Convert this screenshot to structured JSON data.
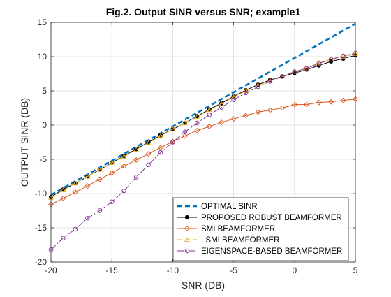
{
  "chart_data": {
    "type": "line",
    "title": "Fig.2. Output SINR versus SNR; example1",
    "xlabel": "SNR (DB)",
    "ylabel": "OUTPUT SINR (DB)",
    "xlim": [
      -20,
      5
    ],
    "ylim": [
      -20,
      15
    ],
    "xticks": [
      -20,
      -15,
      -10,
      -5,
      0,
      5
    ],
    "yticks": [
      -20,
      -15,
      -10,
      -5,
      0,
      5,
      10,
      15
    ],
    "grid": true,
    "legend_position": "bottom-right",
    "x": [
      -20,
      -19,
      -18,
      -17,
      -16,
      -15,
      -14,
      -13,
      -12,
      -11,
      -10,
      -9,
      -8,
      -7,
      -6,
      -5,
      -4,
      -3,
      -2,
      -1,
      0,
      1,
      2,
      3,
      4,
      5
    ],
    "series": [
      {
        "name": "OPTIMAL SINR",
        "color": "#0072BD",
        "style": "dashed",
        "marker": "none",
        "values": [
          -10.2,
          -9.2,
          -8.2,
          -7.2,
          -6.2,
          -5.2,
          -4.2,
          -3.2,
          -2.2,
          -1.2,
          -0.2,
          0.8,
          1.8,
          2.8,
          3.8,
          4.8,
          5.8,
          6.8,
          7.8,
          8.8,
          9.8,
          10.8,
          11.8,
          12.8,
          13.8,
          14.8
        ]
      },
      {
        "name": "PROPOSED ROBUST BEAMFORMER",
        "color": "#000000",
        "style": "solid",
        "marker": "filled-circle",
        "values": [
          -10.5,
          -9.4,
          -8.5,
          -7.5,
          -6.5,
          -5.5,
          -4.5,
          -3.5,
          -2.5,
          -1.5,
          -0.6,
          0.3,
          1.3,
          2.3,
          3.2,
          4.2,
          5.1,
          5.9,
          6.6,
          7.1,
          7.6,
          8.1,
          8.7,
          9.3,
          9.7,
          10.2
        ]
      },
      {
        "name": "SMI BEAMFORMER",
        "color": "#D95319",
        "style": "solid",
        "marker": "diamond",
        "values": [
          -11.6,
          -10.7,
          -9.8,
          -8.9,
          -7.9,
          -7.0,
          -6.0,
          -5.1,
          -4.2,
          -3.3,
          -2.4,
          -1.6,
          -0.8,
          -0.2,
          0.4,
          0.9,
          1.4,
          1.9,
          2.2,
          2.5,
          3.0,
          3.0,
          3.3,
          3.4,
          3.6,
          3.8
        ]
      },
      {
        "name": "LSMI BEAMFORMER",
        "color": "#EDB120",
        "style": "dashed",
        "marker": "triangle",
        "values": [
          -10.6,
          -9.5,
          -8.5,
          -7.5,
          -6.5,
          -5.5,
          -4.6,
          -3.6,
          -2.6,
          -1.6,
          -0.6,
          0.3,
          1.2,
          2.2,
          3.1,
          4.1,
          5.0,
          5.8,
          6.5,
          7.1,
          7.8,
          8.3,
          9.1,
          9.6,
          10.0,
          10.4
        ]
      },
      {
        "name": "EIGENSPACE-BASED BEAMFORMER",
        "color": "#7E2F8E",
        "style": "dashdot",
        "marker": "circle",
        "values": [
          -18.2,
          -16.5,
          -15.2,
          -13.6,
          -12.5,
          -11.2,
          -9.6,
          -7.6,
          -5.8,
          -4.0,
          -2.5,
          -1.0,
          0.3,
          1.5,
          2.6,
          3.7,
          4.7,
          5.6,
          6.4,
          7.1,
          7.8,
          8.3,
          9.0,
          9.6,
          10.1,
          10.5
        ]
      }
    ]
  }
}
